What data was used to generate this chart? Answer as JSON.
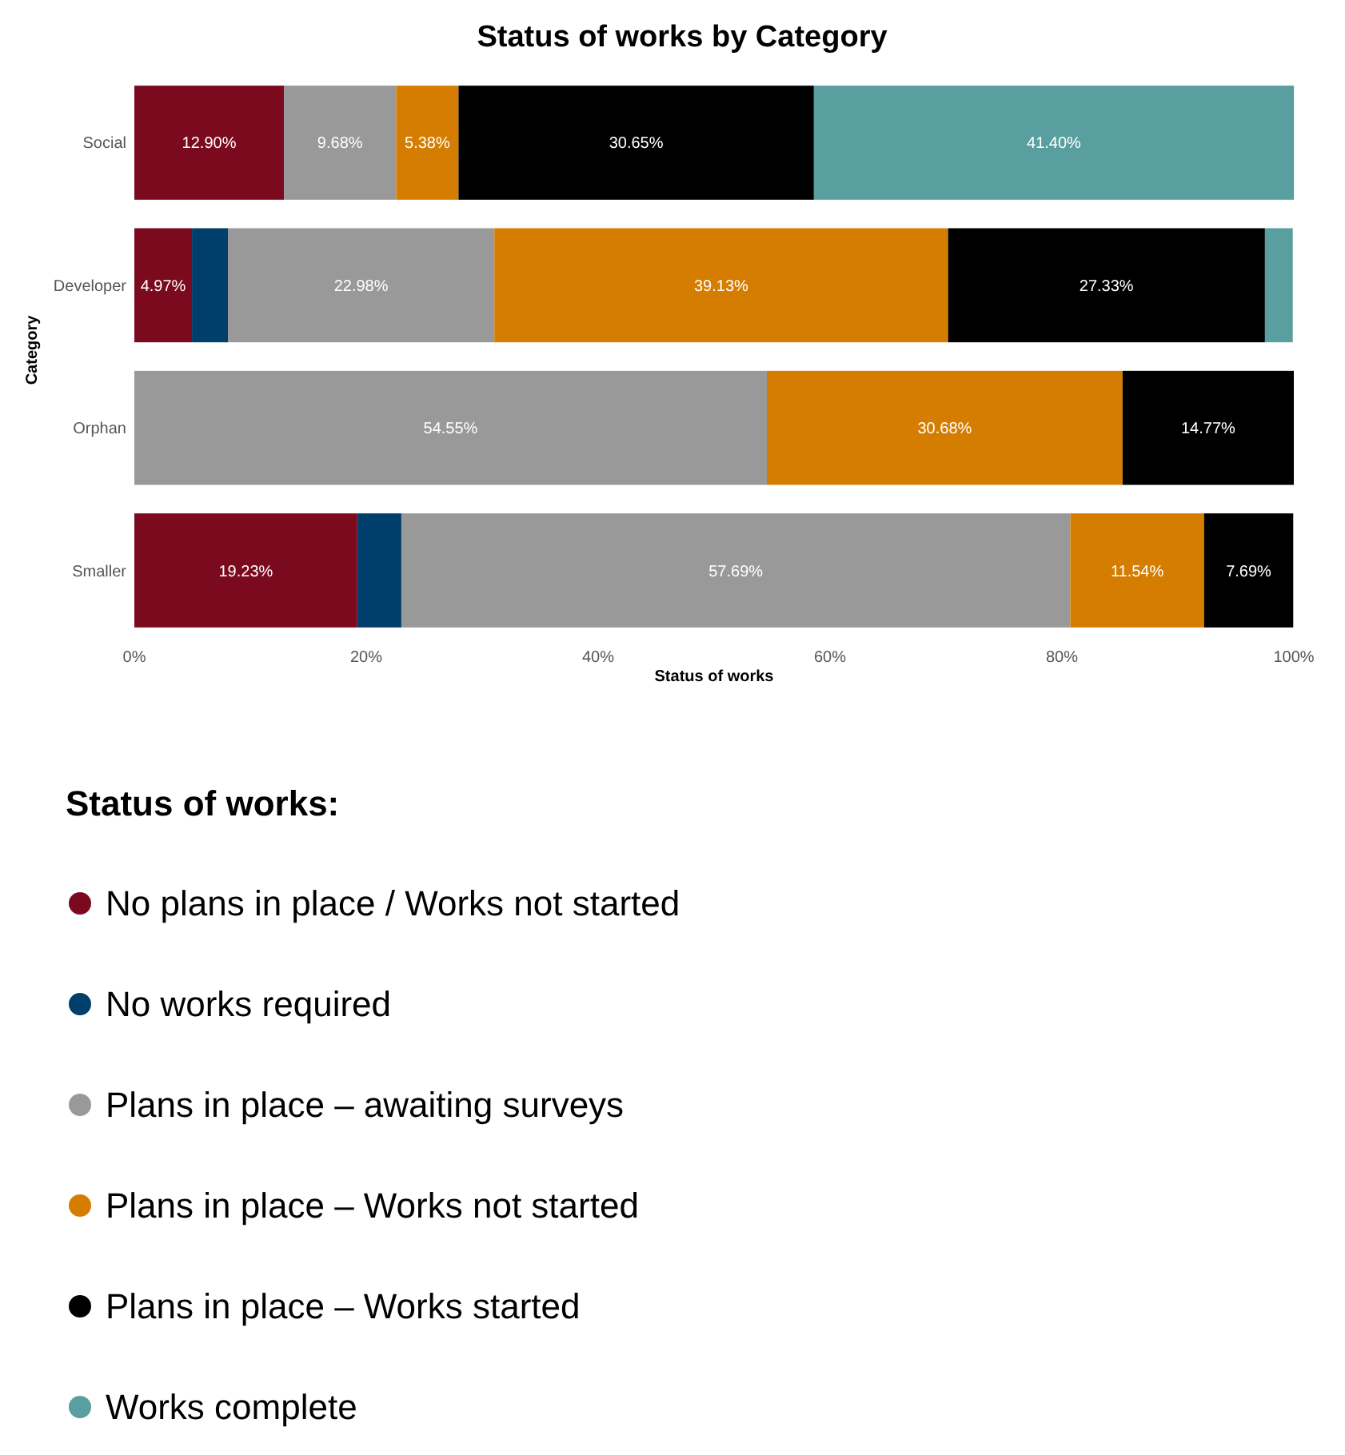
{
  "chart_data": {
    "type": "bar",
    "orientation": "horizontal",
    "stacked": true,
    "title": "Status of works by Category",
    "xlabel": "Status of works",
    "ylabel": "Category",
    "legend_title": "Status of works:",
    "legend": "bottom",
    "grid": false,
    "categories": [
      "Social",
      "Developer",
      "Orphan",
      "Smaller"
    ],
    "xlim": [
      0,
      100
    ],
    "xticks": [
      {
        "value": 0,
        "label": "0%"
      },
      {
        "value": 20,
        "label": "20%"
      },
      {
        "value": 40,
        "label": "40%"
      },
      {
        "value": 60,
        "label": "60%"
      },
      {
        "value": 80,
        "label": "80%"
      },
      {
        "value": 100,
        "label": "100%"
      }
    ],
    "series": [
      {
        "name": "No plans in place / Works not started",
        "color": "#7b0a1e",
        "values": [
          12.9,
          4.97,
          null,
          19.23
        ],
        "value_labels": [
          "12.90%",
          "4.97%",
          null,
          "19.23%"
        ]
      },
      {
        "name": "No works required",
        "color": "#003f6b",
        "values": [
          null,
          3.1,
          null,
          3.8
        ],
        "value_labels": [
          null,
          null,
          null,
          null
        ]
      },
      {
        "name": "Plans in place – awaiting surveys",
        "color": "#999999",
        "values": [
          9.68,
          22.98,
          54.55,
          57.69
        ],
        "value_labels": [
          "9.68%",
          "22.98%",
          "54.55%",
          "57.69%"
        ]
      },
      {
        "name": "Plans in place – Works not started",
        "color": "#d57d00",
        "values": [
          5.38,
          39.13,
          30.68,
          11.54
        ],
        "value_labels": [
          "5.38%",
          "39.13%",
          "30.68%",
          "11.54%"
        ]
      },
      {
        "name": "Plans in place – Works started",
        "color": "#000000",
        "values": [
          30.65,
          27.33,
          14.77,
          7.69
        ],
        "value_labels": [
          "30.65%",
          "27.33%",
          "14.77%",
          "7.69%"
        ]
      },
      {
        "name": "Works complete",
        "color": "#5a9fa0",
        "values": [
          41.4,
          2.4,
          null,
          null
        ],
        "value_labels": [
          "41.40%",
          null,
          null,
          null
        ]
      }
    ]
  }
}
